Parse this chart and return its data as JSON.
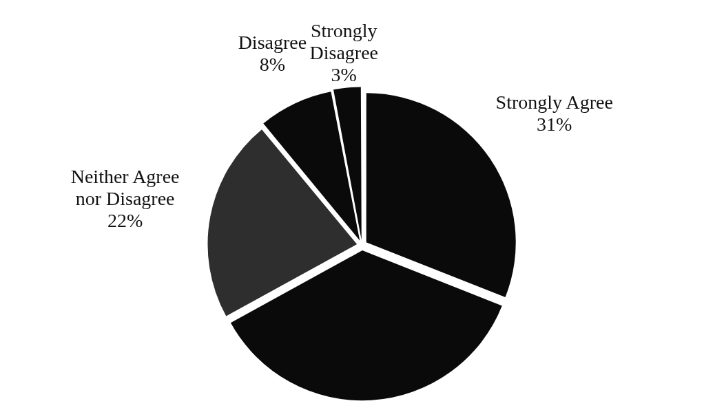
{
  "chart_data": {
    "type": "pie",
    "categories": [
      "Strongly Agree",
      null,
      "Neither Agree nor Disagree",
      "Disagree",
      "Strongly Disagree"
    ],
    "values": [
      31,
      36,
      22,
      8,
      3
    ],
    "colors": [
      "#0a0a0a",
      "#0a0a0a",
      "#2e2e2e",
      "#0a0a0a",
      "#0a0a0a"
    ],
    "value_labels": [
      "31%",
      null,
      "22%",
      "8%",
      "3%"
    ],
    "legend": false
  }
}
